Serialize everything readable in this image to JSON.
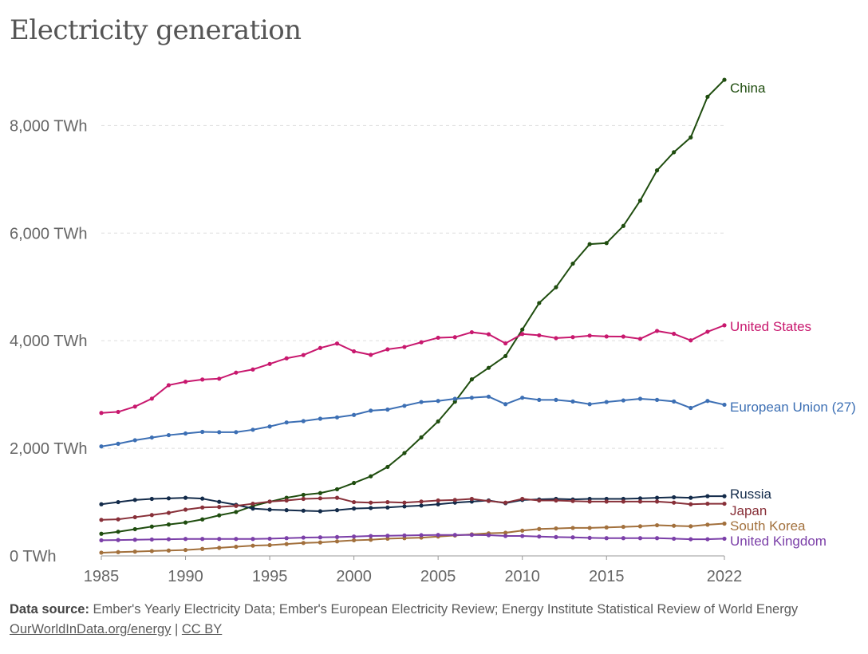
{
  "title": "Electricity generation",
  "chart_data": {
    "type": "line",
    "title": "Electricity generation",
    "x": [
      1985,
      1986,
      1987,
      1988,
      1989,
      1990,
      1991,
      1992,
      1993,
      1994,
      1995,
      1996,
      1997,
      1998,
      1999,
      2000,
      2001,
      2002,
      2003,
      2004,
      2005,
      2006,
      2007,
      2008,
      2009,
      2010,
      2011,
      2012,
      2013,
      2014,
      2015,
      2016,
      2017,
      2018,
      2019,
      2020,
      2021,
      2022
    ],
    "xlim": [
      1985,
      2022
    ],
    "x_ticks": [
      "1985",
      "1990",
      "1995",
      "2000",
      "2005",
      "2010",
      "2015",
      "2022"
    ],
    "ylim": [
      0,
      8850
    ],
    "y_ticks": [
      "0 TWh",
      "2,000 TWh",
      "4,000 TWh",
      "6,000 TWh",
      "8,000 TWh"
    ],
    "grid": true,
    "series": [
      {
        "name": "China",
        "color": "#1f4d0f",
        "values": [
          411,
          449,
          497,
          545,
          584,
          621,
          678,
          754,
          816,
          928,
          1007,
          1081,
          1135,
          1167,
          1239,
          1356,
          1480,
          1654,
          1911,
          2203,
          2500,
          2866,
          3282,
          3496,
          3714,
          4207,
          4700,
          4994,
          5432,
          5794,
          5815,
          6133,
          6604,
          7166,
          7503,
          7779,
          8534,
          8849
        ]
      },
      {
        "name": "United States",
        "color": "#c8186e",
        "values": [
          2657,
          2677,
          2775,
          2923,
          3173,
          3237,
          3278,
          3294,
          3407,
          3465,
          3568,
          3673,
          3733,
          3865,
          3947,
          3802,
          3737,
          3839,
          3883,
          3971,
          4055,
          4065,
          4157,
          4119,
          3950,
          4125,
          4100,
          4048,
          4066,
          4094,
          4078,
          4077,
          4035,
          4181,
          4128,
          4006,
          4166,
          4286
        ]
      },
      {
        "name": "European Union (27)",
        "color": "#3c6fb4",
        "values": [
          2035,
          2085,
          2150,
          2200,
          2245,
          2275,
          2305,
          2300,
          2300,
          2345,
          2405,
          2480,
          2505,
          2550,
          2575,
          2620,
          2700,
          2720,
          2790,
          2860,
          2880,
          2920,
          2940,
          2960,
          2820,
          2940,
          2900,
          2900,
          2870,
          2820,
          2860,
          2890,
          2920,
          2900,
          2870,
          2750,
          2880,
          2810
        ]
      },
      {
        "name": "Russia",
        "color": "#132b4a",
        "values": [
          960,
          1000,
          1040,
          1060,
          1070,
          1080,
          1065,
          1005,
          950,
          880,
          860,
          850,
          840,
          830,
          850,
          880,
          890,
          900,
          920,
          935,
          960,
          990,
          1010,
          1030,
          980,
          1040,
          1050,
          1060,
          1050,
          1060,
          1060,
          1060,
          1070,
          1080,
          1090,
          1080,
          1110,
          1110
        ]
      },
      {
        "name": "Japan",
        "color": "#883039",
        "values": [
          670,
          680,
          720,
          760,
          800,
          860,
          900,
          910,
          930,
          970,
          1010,
          1030,
          1060,
          1070,
          1080,
          1000,
          990,
          1000,
          990,
          1010,
          1030,
          1040,
          1060,
          1020,
          990,
          1060,
          1030,
          1030,
          1020,
          1010,
          1010,
          1010,
          1010,
          1010,
          990,
          960,
          970,
          970
        ]
      },
      {
        "name": "South Korea",
        "color": "#a2703c",
        "values": [
          60,
          70,
          80,
          90,
          100,
          110,
          130,
          150,
          170,
          190,
          200,
          220,
          240,
          250,
          270,
          290,
          300,
          320,
          330,
          340,
          360,
          380,
          400,
          420,
          430,
          470,
          500,
          510,
          520,
          520,
          530,
          540,
          550,
          570,
          560,
          550,
          580,
          600
        ]
      },
      {
        "name": "United Kingdom",
        "color": "#7b3fa8",
        "values": [
          290,
          295,
          300,
          305,
          310,
          315,
          315,
          315,
          315,
          315,
          320,
          330,
          340,
          345,
          350,
          360,
          370,
          375,
          380,
          385,
          390,
          390,
          390,
          385,
          370,
          370,
          360,
          350,
          345,
          335,
          330,
          330,
          330,
          330,
          320,
          310,
          310,
          320
        ]
      }
    ]
  },
  "footer": {
    "source_label": "Data source:",
    "source_text": "Ember's Yearly Electricity Data; Ember's European Electricity Review; Energy Institute Statistical Review of World Energy",
    "link": "OurWorldInData.org/energy",
    "separator": "|",
    "license": "CC BY"
  }
}
